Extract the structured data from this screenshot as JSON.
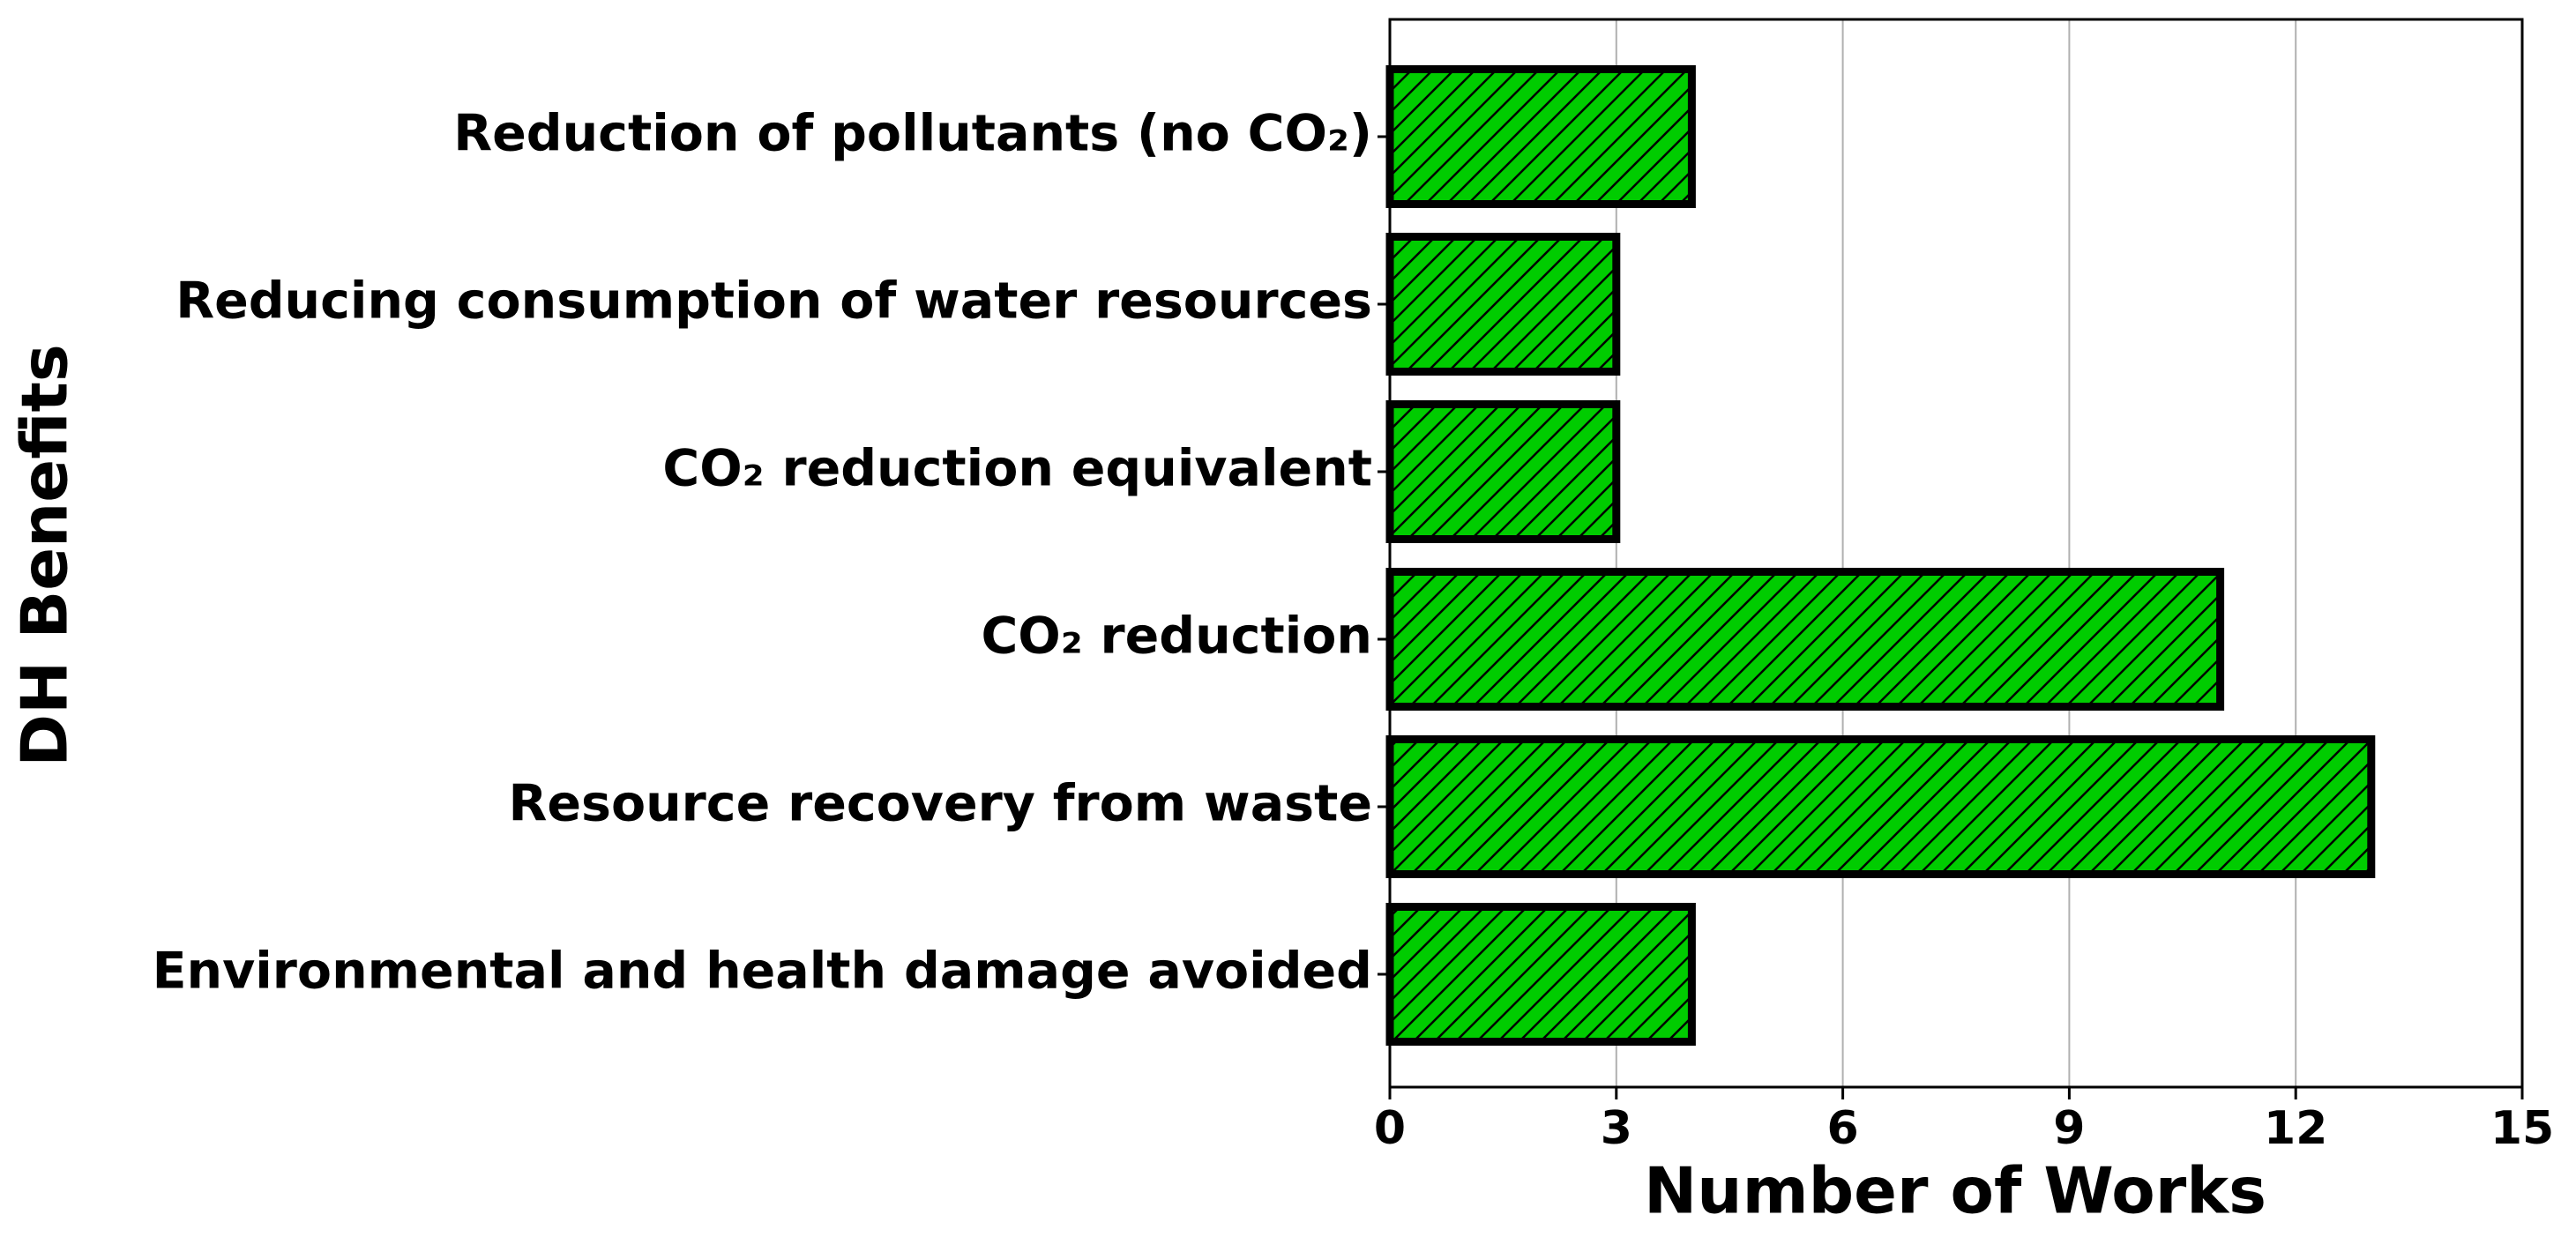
{
  "chart_data": {
    "type": "barh",
    "categories": [
      "Environmental and health damage avoided",
      "Resource recovery from waste",
      "CO₂ reduction",
      "CO₂ reduction equivalent",
      "Reducing consumption of water resources",
      "Reduction of pollutants (no CO₂)"
    ],
    "values": [
      4,
      13,
      11,
      3,
      3,
      4
    ],
    "color": "#00cc00",
    "hatch": "//",
    "xlabel": "Number of Works",
    "ylabel": "DH Benefits",
    "xlim": [
      0,
      15
    ],
    "xticks": [
      0,
      3,
      6,
      9,
      12,
      15
    ],
    "grid": true
  }
}
